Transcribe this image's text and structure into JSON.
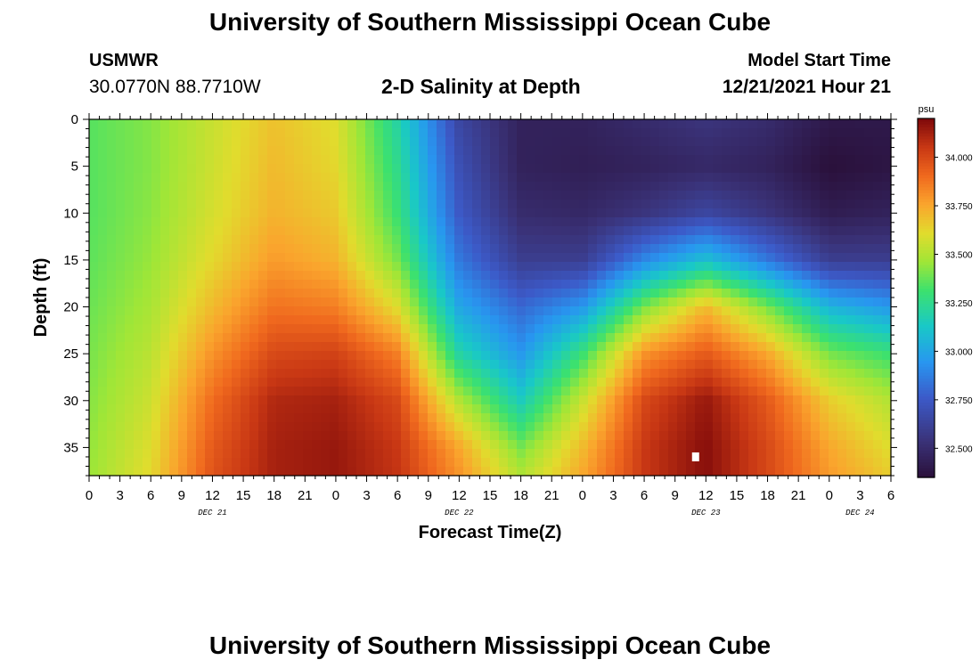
{
  "header": {
    "title": "University of Southern Mississippi Ocean Cube",
    "station": "USMWR",
    "coords": "30.0770N  88.7710W",
    "model_start_label": "Model Start Time",
    "model_start_value": "12/21/2021 Hour 21",
    "footer_title": "University of Southern Mississippi Ocean Cube"
  },
  "chart_data": {
    "type": "heatmap",
    "title": "2-D Salinity at Depth",
    "xlabel": "Forecast Time(Z)",
    "ylabel": "Depth (ft)",
    "x_range_hours": [
      0,
      78
    ],
    "ylim": [
      0,
      38
    ],
    "y_ticks": [
      0,
      5,
      10,
      15,
      20,
      25,
      30,
      35
    ],
    "x_tick_labels": [
      "0",
      "3",
      "6",
      "9",
      "12",
      "15",
      "18",
      "21",
      "0",
      "3",
      "6",
      "9",
      "12",
      "15",
      "18",
      "21",
      "0",
      "3",
      "6",
      "9",
      "12",
      "15",
      "18",
      "21",
      "0",
      "3",
      "6"
    ],
    "day_labels": [
      {
        "label": "DEC 21",
        "hour": 12
      },
      {
        "label": "DEC 22",
        "hour": 36
      },
      {
        "label": "DEC 23",
        "hour": 60
      },
      {
        "label": "DEC 24",
        "hour": 75
      }
    ],
    "colorbar": {
      "unit": "psu",
      "min": 32.35,
      "max": 34.2,
      "ticks": [
        "32.500",
        "32.750",
        "33.000",
        "33.250",
        "33.500",
        "33.750",
        "34.000"
      ]
    },
    "current_time_marker": {
      "hour": 59,
      "depth": 36
    },
    "salinity_grid": {
      "depths_ft": [
        0,
        5,
        10,
        15,
        20,
        25,
        30,
        35,
        38
      ],
      "hours": [
        0,
        6,
        12,
        18,
        24,
        30,
        36,
        42,
        48,
        54,
        60,
        66,
        72,
        78
      ],
      "values_psu": [
        [
          33.35,
          33.42,
          33.55,
          33.68,
          33.6,
          33.2,
          32.65,
          32.45,
          32.45,
          32.5,
          32.55,
          32.5,
          32.4,
          32.4
        ],
        [
          33.35,
          33.42,
          33.56,
          33.7,
          33.62,
          33.25,
          32.7,
          32.45,
          32.43,
          32.45,
          32.48,
          32.45,
          32.35,
          32.38
        ],
        [
          33.35,
          33.43,
          33.58,
          33.72,
          33.66,
          33.3,
          32.75,
          32.5,
          32.48,
          32.55,
          32.65,
          32.55,
          32.42,
          32.45
        ],
        [
          33.36,
          33.45,
          33.62,
          33.78,
          33.72,
          33.4,
          32.85,
          32.6,
          32.6,
          32.9,
          33.1,
          32.85,
          32.6,
          32.6
        ],
        [
          33.38,
          33.48,
          33.7,
          33.88,
          33.85,
          33.6,
          33.0,
          32.8,
          32.95,
          33.4,
          33.7,
          33.4,
          33.05,
          32.95
        ],
        [
          33.4,
          33.52,
          33.8,
          34.0,
          34.02,
          33.85,
          33.2,
          32.95,
          33.3,
          33.8,
          33.95,
          33.75,
          33.4,
          33.3
        ],
        [
          33.42,
          33.56,
          33.9,
          34.1,
          34.12,
          34.0,
          33.5,
          33.15,
          33.55,
          34.0,
          34.15,
          33.95,
          33.65,
          33.5
        ],
        [
          33.44,
          33.6,
          33.95,
          34.12,
          34.15,
          34.05,
          33.75,
          33.4,
          33.7,
          34.05,
          34.18,
          34.0,
          33.75,
          33.6
        ],
        [
          33.45,
          33.62,
          33.97,
          34.12,
          34.15,
          34.06,
          33.8,
          33.5,
          33.75,
          34.05,
          34.18,
          34.0,
          33.78,
          33.65
        ]
      ]
    }
  }
}
